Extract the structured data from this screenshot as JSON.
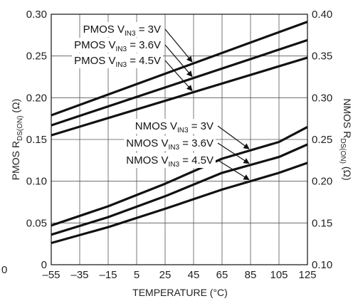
{
  "chart_data": {
    "type": "line",
    "xlabel": "TEMPERATURE (°C)",
    "ylabel_left": {
      "pre": "PMOS R",
      "sub": "DS(ON)",
      "post": " (Ω)"
    },
    "ylabel_right": {
      "pre": "NMOS R",
      "sub": "DS(ON)",
      "post": " (Ω)"
    },
    "xlim": [
      -55,
      125
    ],
    "ylim_left": [
      0,
      0.3
    ],
    "ylim_right": [
      0.1,
      0.4
    ],
    "x_ticks": [
      "–55",
      "–35",
      "–15",
      "5",
      "25",
      "45",
      "65",
      "85",
      "105",
      "125"
    ],
    "x_tick_values": [
      -55,
      -35,
      -15,
      5,
      25,
      45,
      65,
      85,
      105,
      125
    ],
    "y_left_ticks": [
      "0",
      "0.05",
      "0.10",
      "0.15",
      "0.20",
      "0.25",
      "0.30"
    ],
    "y_left_tick_values": [
      0,
      0.05,
      0.1,
      0.15,
      0.2,
      0.25,
      0.3
    ],
    "y_right_ticks": [
      "0.10",
      "0.15",
      "0.20",
      "0.25",
      "0.30",
      "0.35",
      "0.40"
    ],
    "y_right_tick_values": [
      0.1,
      0.15,
      0.2,
      0.25,
      0.3,
      0.35,
      0.4
    ],
    "grid": true,
    "stray_label": "0",
    "series": [
      {
        "id": "pmos-3v",
        "axis": "left",
        "label": {
          "pre": "PMOS V",
          "sub": "IN3",
          "post": " = 3V"
        },
        "x": [
          -55,
          125
        ],
        "y": [
          0.179,
          0.291
        ],
        "label_at_x": 45
      },
      {
        "id": "pmos-3-6v",
        "axis": "left",
        "label": {
          "pre": "PMOS V",
          "sub": "IN3",
          "post": " = 3.6V"
        },
        "x": [
          -55,
          125
        ],
        "y": [
          0.167,
          0.269
        ],
        "label_at_x": 45
      },
      {
        "id": "pmos-4-5v",
        "axis": "left",
        "label": {
          "pre": "PMOS V",
          "sub": "IN3",
          "post": " = 4.5V"
        },
        "x": [
          -55,
          125
        ],
        "y": [
          0.155,
          0.248
        ],
        "label_at_x": 45
      },
      {
        "id": "nmos-3v",
        "axis": "right",
        "label": {
          "pre": "NMOS V",
          "sub": "IN3",
          "post": " = 3V"
        },
        "x": [
          -55,
          -15,
          25,
          65,
          105,
          125
        ],
        "y": [
          0.147,
          0.17,
          0.197,
          0.227,
          0.247,
          0.265
        ],
        "label_at_x": 85
      },
      {
        "id": "nmos-3-6v",
        "axis": "right",
        "label": {
          "pre": "NMOS V",
          "sub": "IN3",
          "post": " = 3.6V"
        },
        "x": [
          -55,
          -15,
          25,
          65,
          105,
          125
        ],
        "y": [
          0.136,
          0.157,
          0.182,
          0.21,
          0.229,
          0.244
        ],
        "label_at_x": 85
      },
      {
        "id": "nmos-4-5v",
        "axis": "right",
        "label": {
          "pre": "NMOS V",
          "sub": "IN3",
          "post": " = 4.5V"
        },
        "x": [
          -55,
          -15,
          25,
          65,
          105,
          125
        ],
        "y": [
          0.126,
          0.145,
          0.167,
          0.19,
          0.21,
          0.222
        ],
        "label_at_x": 85
      }
    ]
  }
}
